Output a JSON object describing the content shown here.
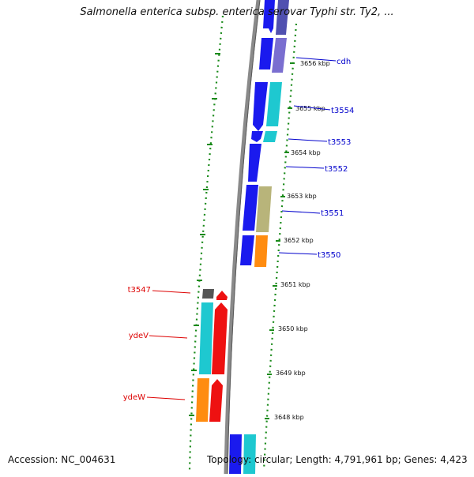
{
  "header": {
    "title": "Salmonella enterica subsp. enterica serovar Typhi str. Ty2, ..."
  },
  "footer": {
    "accession": "Accession: NC_004631",
    "topology": "Topology: circular;",
    "length": "Length: 4,791,961 bp;",
    "genes": "Genes: 4,423"
  },
  "colors": {
    "outer_ring_dots": "#1a8a1a",
    "backbone": "#8a8a8a",
    "forward_gene_label": "#0000cc",
    "reverse_gene_label": "#dd0000"
  },
  "scale_ticks": [
    "3656 kbp",
    "3655 kbp",
    "3654 kbp",
    "3653 kbp",
    "3652 kbp",
    "3651 kbp",
    "3650 kbp",
    "3649 kbp",
    "3648 kbp"
  ],
  "gene_labels_right": [
    "cdh",
    "t3554",
    "t3553",
    "t3552",
    "t3551",
    "t3550"
  ],
  "gene_labels_left": [
    "t3547",
    "ydeV",
    "ydeW"
  ]
}
